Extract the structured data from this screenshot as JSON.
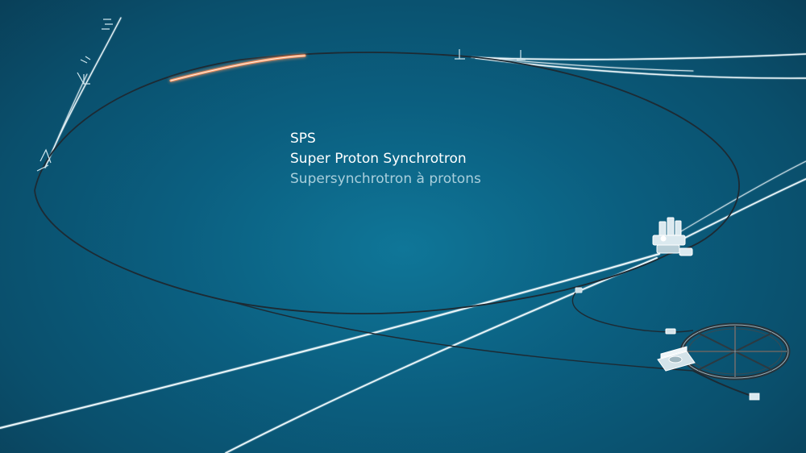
{
  "caption": {
    "abbreviation": "SPS",
    "name_en": "Super Proton Synchrotron",
    "name_fr": "Supersynchrotron à protons"
  },
  "colors": {
    "background": "#0b5f80",
    "beam_highlight": "#ff9a66",
    "ring_line": "#1d2a33",
    "transfer_line": "#e8f4f8"
  },
  "icons": {
    "detector": "detector-structure-icon",
    "ring": "circular-accelerator-icon",
    "transfer_station": "beamline-junction-icon"
  }
}
